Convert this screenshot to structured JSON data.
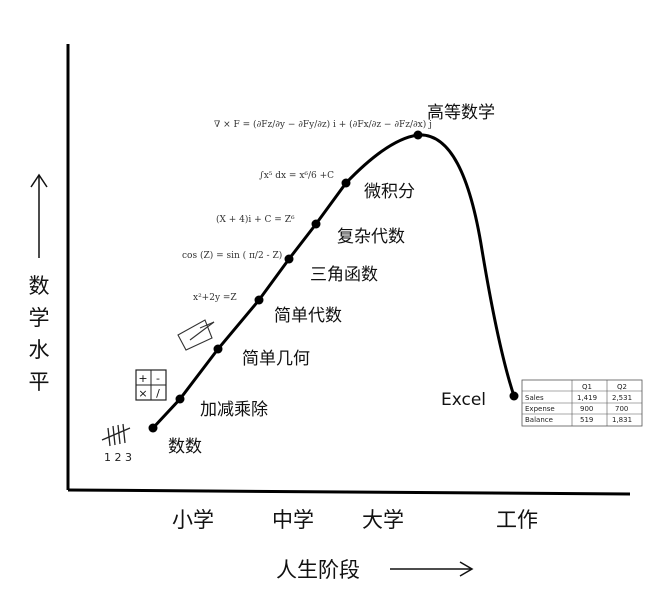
{
  "axes": {
    "y_label": [
      "数",
      "学",
      "水",
      "平"
    ],
    "x_label": "人生阶段",
    "x_ticks": [
      "小学",
      "中学",
      "大学",
      "工作"
    ]
  },
  "stages": [
    "数数",
    "加减乘除",
    "简单几何",
    "简单代数",
    "三角函数",
    "复杂代数",
    "微积分",
    "高等数学",
    "Excel"
  ],
  "formulas": {
    "algebra": "x²+2y =Z",
    "trig": "cos (Z) = sin ( π/2 - Z)",
    "complex": "(X + 4)i + C = Z⁶",
    "calculus": "∫x⁵ dx = x⁶/6 +C",
    "curl": "∇ × F = (∂Fz/∂y − ∂Fy/∂z) i + (∂Fx/∂z − ∂Fz/∂x) j"
  },
  "tally": {
    "numbers": "1 2 3"
  },
  "arith_grid": [
    "+",
    "-",
    "×",
    "/"
  ],
  "excel_table": {
    "headers": [
      "",
      "Q1",
      "Q2"
    ],
    "rows": [
      [
        "Sales",
        "1,419",
        "2,531"
      ],
      [
        "Expense",
        "900",
        "700"
      ],
      [
        "Balance",
        "519",
        "1,831"
      ]
    ]
  }
}
